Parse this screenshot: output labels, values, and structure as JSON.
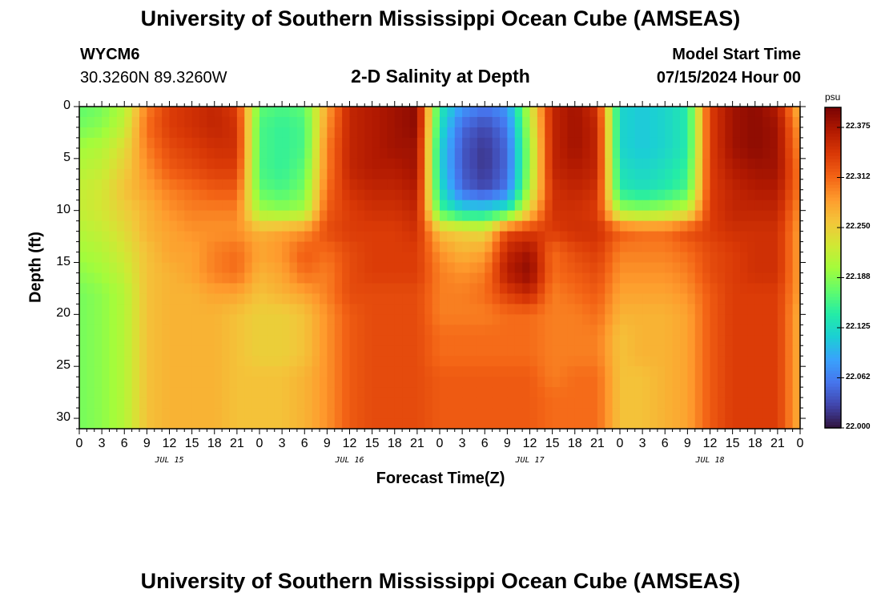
{
  "page": {
    "title": "University of Southern Mississippi Ocean Cube (AMSEAS)",
    "footer_title": "University of Southern Mississippi Ocean Cube (AMSEAS)",
    "station_id": "WYCM6",
    "station_coords": "30.3260N  89.3260W",
    "plot_title": "2-D Salinity at Depth",
    "model_start_label": "Model Start Time",
    "model_start_value": "07/15/2024 Hour 00"
  },
  "chart_data": {
    "type": "heatmap",
    "title": "2-D Salinity at Depth",
    "xlabel": "Forecast Time(Z)",
    "ylabel": "Depth (ft)",
    "x_unit": "hours since model start",
    "xlim": [
      0,
      96
    ],
    "ylim": [
      31,
      0
    ],
    "x_ticks": [
      0,
      3,
      6,
      9,
      12,
      15,
      18,
      21,
      24,
      27,
      30,
      33,
      36,
      39,
      42,
      45,
      48,
      51,
      54,
      57,
      60,
      63,
      66,
      69,
      72,
      75,
      78,
      81,
      84,
      87,
      90,
      93,
      96
    ],
    "x_tick_labels": [
      "0",
      "3",
      "6",
      "9",
      "12",
      "15",
      "18",
      "21",
      "0",
      "3",
      "6",
      "9",
      "12",
      "15",
      "18",
      "21",
      "0",
      "3",
      "6",
      "9",
      "12",
      "15",
      "18",
      "21",
      "0",
      "3",
      "6",
      "9",
      "12",
      "15",
      "18",
      "21",
      "0"
    ],
    "y_ticks": [
      0,
      5,
      10,
      15,
      20,
      25,
      30
    ],
    "y_tick_labels": [
      "0",
      "5",
      "10",
      "15",
      "20",
      "25",
      "30"
    ],
    "date_labels": [
      {
        "hour": 12,
        "label": "JUL 15"
      },
      {
        "hour": 36,
        "label": "JUL 16"
      },
      {
        "hour": 60,
        "label": "JUL 17"
      },
      {
        "hour": 84,
        "label": "JUL 18"
      }
    ],
    "colorbar": {
      "unit": "psu",
      "range": [
        22.0,
        22.4
      ],
      "ticks": [
        22.0,
        22.0625,
        22.125,
        22.1875,
        22.25,
        22.3125,
        22.375
      ],
      "tick_labels": [
        "22.000",
        "22.062",
        "22.125",
        "22.188",
        "22.250",
        "22.312",
        "22.375"
      ],
      "colormap": [
        "#30123b",
        "#4145ab",
        "#4675ed",
        "#39a2fc",
        "#1bcfd4",
        "#24eca6",
        "#61fc6c",
        "#a4fc3b",
        "#d1e834",
        "#f3c63a",
        "#fe9b2d",
        "#f36315",
        "#d93806",
        "#b11901",
        "#7a0403"
      ]
    },
    "depths": [
      0,
      2,
      4,
      6,
      8,
      10,
      12,
      14,
      16,
      18,
      20,
      22,
      24,
      26,
      28,
      31
    ],
    "hours": [
      0,
      3,
      6,
      9,
      12,
      15,
      18,
      21,
      24,
      27,
      30,
      33,
      36,
      39,
      42,
      45,
      48,
      51,
      54,
      57,
      60,
      63,
      66,
      69,
      72,
      75,
      78,
      81,
      84,
      87,
      90,
      93,
      96
    ],
    "values": [
      [
        22.17,
        22.18,
        22.21,
        22.3,
        22.34,
        22.35,
        22.36,
        22.34,
        22.17,
        22.16,
        22.17,
        22.28,
        22.36,
        22.37,
        22.38,
        22.39,
        22.14,
        22.08,
        22.06,
        22.08,
        22.22,
        22.36,
        22.38,
        22.35,
        22.12,
        22.11,
        22.12,
        22.14,
        22.34,
        22.38,
        22.39,
        22.37,
        22.26
      ],
      [
        22.18,
        22.19,
        22.22,
        22.31,
        22.34,
        22.35,
        22.36,
        22.35,
        22.16,
        22.15,
        22.16,
        22.29,
        22.36,
        22.37,
        22.38,
        22.39,
        22.13,
        22.05,
        22.03,
        22.06,
        22.21,
        22.36,
        22.38,
        22.36,
        22.12,
        22.11,
        22.12,
        22.14,
        22.34,
        22.38,
        22.39,
        22.38,
        22.28
      ],
      [
        22.2,
        22.21,
        22.24,
        22.3,
        22.33,
        22.34,
        22.35,
        22.35,
        22.16,
        22.15,
        22.16,
        22.3,
        22.36,
        22.37,
        22.38,
        22.38,
        22.12,
        22.04,
        22.02,
        22.05,
        22.2,
        22.36,
        22.38,
        22.36,
        22.12,
        22.11,
        22.12,
        22.14,
        22.34,
        22.38,
        22.39,
        22.38,
        22.29
      ],
      [
        22.21,
        22.22,
        22.25,
        22.29,
        22.32,
        22.33,
        22.34,
        22.34,
        22.16,
        22.15,
        22.17,
        22.3,
        22.36,
        22.37,
        22.37,
        22.38,
        22.12,
        22.04,
        22.02,
        22.05,
        22.2,
        22.36,
        22.37,
        22.36,
        22.13,
        22.12,
        22.13,
        22.15,
        22.34,
        22.37,
        22.38,
        22.38,
        22.3
      ],
      [
        22.22,
        22.23,
        22.26,
        22.28,
        22.3,
        22.31,
        22.32,
        22.32,
        22.17,
        22.16,
        22.18,
        22.31,
        22.35,
        22.36,
        22.36,
        22.37,
        22.13,
        22.05,
        22.03,
        22.06,
        22.21,
        22.35,
        22.36,
        22.35,
        22.14,
        22.13,
        22.14,
        22.16,
        22.34,
        22.36,
        22.37,
        22.37,
        22.3
      ],
      [
        22.22,
        22.23,
        22.25,
        22.27,
        22.29,
        22.3,
        22.3,
        22.3,
        22.2,
        22.19,
        22.2,
        22.32,
        22.34,
        22.35,
        22.35,
        22.36,
        22.16,
        22.12,
        22.12,
        22.14,
        22.25,
        22.35,
        22.35,
        22.34,
        22.2,
        22.19,
        22.2,
        22.22,
        22.34,
        22.36,
        22.36,
        22.36,
        22.29
      ],
      [
        22.21,
        22.22,
        22.24,
        22.27,
        22.28,
        22.29,
        22.29,
        22.29,
        22.27,
        22.28,
        22.29,
        22.33,
        22.34,
        22.34,
        22.34,
        22.35,
        22.26,
        22.25,
        22.24,
        22.33,
        22.34,
        22.34,
        22.35,
        22.35,
        22.32,
        22.31,
        22.31,
        22.33,
        22.34,
        22.35,
        22.35,
        22.35,
        22.28
      ],
      [
        22.2,
        22.21,
        22.23,
        22.26,
        22.28,
        22.28,
        22.3,
        22.31,
        22.28,
        22.29,
        22.32,
        22.31,
        22.33,
        22.34,
        22.34,
        22.34,
        22.29,
        22.27,
        22.28,
        22.36,
        22.38,
        22.31,
        22.33,
        22.34,
        22.3,
        22.3,
        22.3,
        22.31,
        22.33,
        22.34,
        22.35,
        22.35,
        22.28
      ],
      [
        22.19,
        22.2,
        22.22,
        22.26,
        22.27,
        22.28,
        22.3,
        22.31,
        22.27,
        22.28,
        22.31,
        22.3,
        22.33,
        22.34,
        22.34,
        22.34,
        22.3,
        22.29,
        22.3,
        22.37,
        22.39,
        22.31,
        22.32,
        22.33,
        22.29,
        22.29,
        22.29,
        22.3,
        22.33,
        22.34,
        22.35,
        22.35,
        22.28
      ],
      [
        22.18,
        22.19,
        22.21,
        22.26,
        22.27,
        22.27,
        22.28,
        22.28,
        22.26,
        22.27,
        22.28,
        22.3,
        22.33,
        22.33,
        22.33,
        22.33,
        22.3,
        22.3,
        22.31,
        22.34,
        22.36,
        22.3,
        22.31,
        22.32,
        22.28,
        22.28,
        22.28,
        22.29,
        22.32,
        22.34,
        22.34,
        22.34,
        22.28
      ],
      [
        22.18,
        22.19,
        22.21,
        22.26,
        22.27,
        22.27,
        22.27,
        22.26,
        22.25,
        22.25,
        22.26,
        22.29,
        22.32,
        22.33,
        22.33,
        22.33,
        22.3,
        22.3,
        22.3,
        22.31,
        22.31,
        22.3,
        22.3,
        22.31,
        22.27,
        22.27,
        22.27,
        22.28,
        22.32,
        22.34,
        22.34,
        22.34,
        22.27
      ],
      [
        22.18,
        22.19,
        22.21,
        22.26,
        22.27,
        22.27,
        22.27,
        22.26,
        22.25,
        22.25,
        22.26,
        22.29,
        22.32,
        22.33,
        22.33,
        22.33,
        22.31,
        22.31,
        22.31,
        22.31,
        22.31,
        22.3,
        22.3,
        22.3,
        22.26,
        22.27,
        22.27,
        22.28,
        22.32,
        22.34,
        22.34,
        22.34,
        22.27
      ],
      [
        22.18,
        22.19,
        22.21,
        22.26,
        22.27,
        22.27,
        22.27,
        22.26,
        22.25,
        22.25,
        22.26,
        22.29,
        22.32,
        22.33,
        22.33,
        22.33,
        22.31,
        22.31,
        22.31,
        22.31,
        22.31,
        22.3,
        22.3,
        22.3,
        22.26,
        22.27,
        22.27,
        22.28,
        22.32,
        22.34,
        22.34,
        22.34,
        22.27
      ],
      [
        22.18,
        22.19,
        22.21,
        22.26,
        22.27,
        22.27,
        22.27,
        22.26,
        22.26,
        22.26,
        22.27,
        22.29,
        22.32,
        22.33,
        22.33,
        22.33,
        22.32,
        22.32,
        22.32,
        22.32,
        22.32,
        22.3,
        22.31,
        22.31,
        22.26,
        22.26,
        22.27,
        22.28,
        22.32,
        22.34,
        22.34,
        22.34,
        22.27
      ],
      [
        22.18,
        22.19,
        22.21,
        22.26,
        22.27,
        22.27,
        22.27,
        22.26,
        22.26,
        22.26,
        22.27,
        22.29,
        22.32,
        22.33,
        22.33,
        22.33,
        22.32,
        22.32,
        22.32,
        22.32,
        22.32,
        22.31,
        22.31,
        22.31,
        22.26,
        22.26,
        22.27,
        22.28,
        22.32,
        22.34,
        22.34,
        22.34,
        22.27
      ],
      [
        22.18,
        22.19,
        22.21,
        22.26,
        22.27,
        22.27,
        22.27,
        22.26,
        22.26,
        22.26,
        22.27,
        22.29,
        22.32,
        22.33,
        22.33,
        22.33,
        22.32,
        22.32,
        22.32,
        22.32,
        22.32,
        22.31,
        22.31,
        22.31,
        22.26,
        22.26,
        22.27,
        22.28,
        22.32,
        22.34,
        22.34,
        22.34,
        22.27
      ]
    ]
  }
}
